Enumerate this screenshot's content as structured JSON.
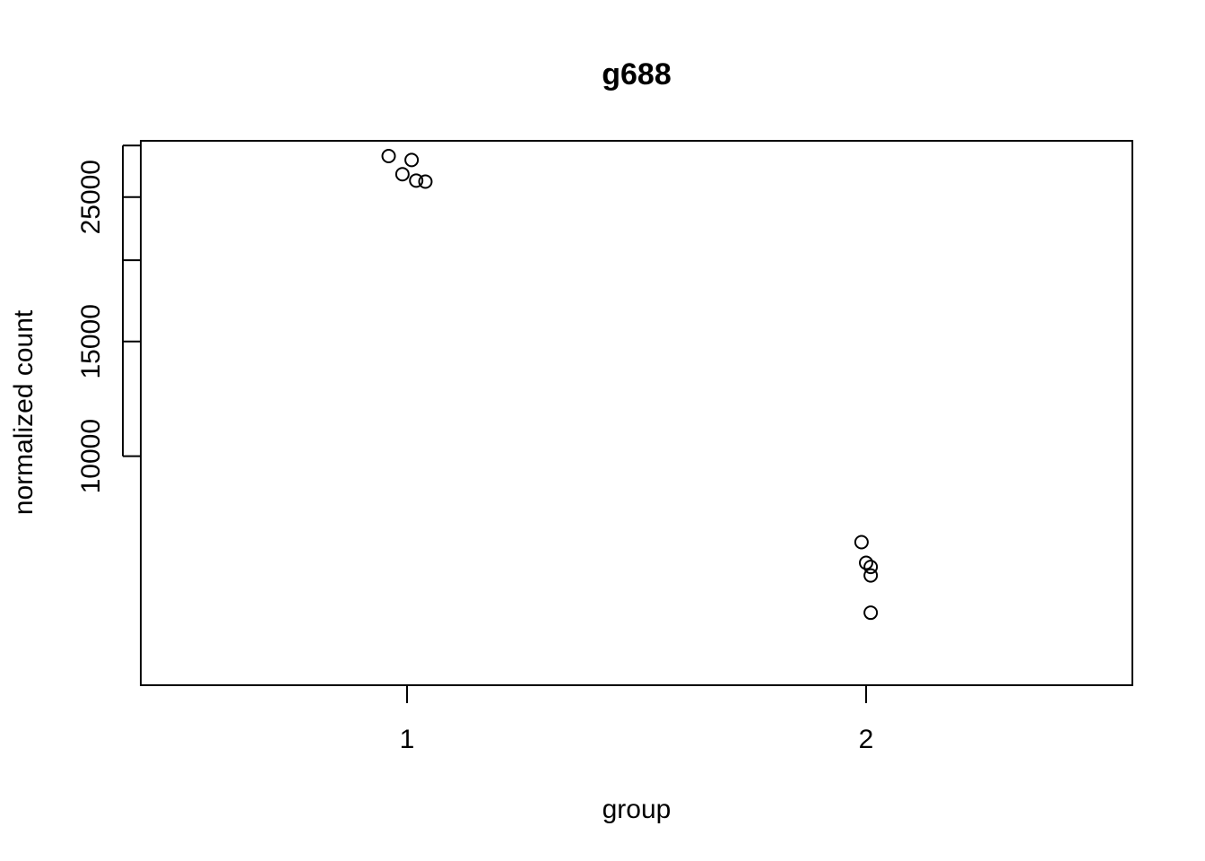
{
  "chart_data": {
    "type": "scatter",
    "title": "g688",
    "xlabel": "group",
    "ylabel": "normalized count",
    "x_scale": "linear",
    "y_scale": "log",
    "xlim": [
      0.42,
      2.58
    ],
    "ylim": [
      4450,
      30500
    ],
    "x_ticks": [
      1,
      2
    ],
    "x_tick_labels": [
      "1",
      "2"
    ],
    "y_ticks": [
      10000,
      15000,
      20000,
      25000,
      30000
    ],
    "y_tick_labels": [
      "10000",
      "15000",
      "",
      "25000",
      ""
    ],
    "grid": false,
    "legend": "none",
    "marker": "open-circle",
    "colors": {
      "points": "#000000",
      "axes": "#000000",
      "background": "#ffffff"
    },
    "series": [
      {
        "x": [
          0.96,
          1.01,
          0.99,
          1.02,
          1.04,
          1.99,
          2.0,
          2.01,
          2.01,
          2.01
        ],
        "y": [
          28900,
          28500,
          27100,
          26500,
          26400,
          7380,
          6860,
          6760,
          6560,
          5750
        ]
      }
    ]
  }
}
